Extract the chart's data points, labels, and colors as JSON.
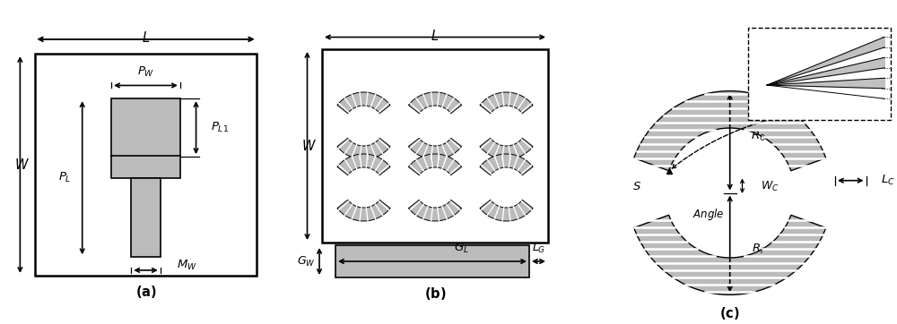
{
  "fig_width": 10.0,
  "fig_height": 3.62,
  "dpi": 100,
  "bg_color": "#ffffff",
  "patch_color": "#bbbbbb",
  "line_color": "#000000",
  "lw_main": 1.8,
  "lw_arr": 1.2,
  "fs_label": 9.5,
  "fs_sub": 10.5
}
